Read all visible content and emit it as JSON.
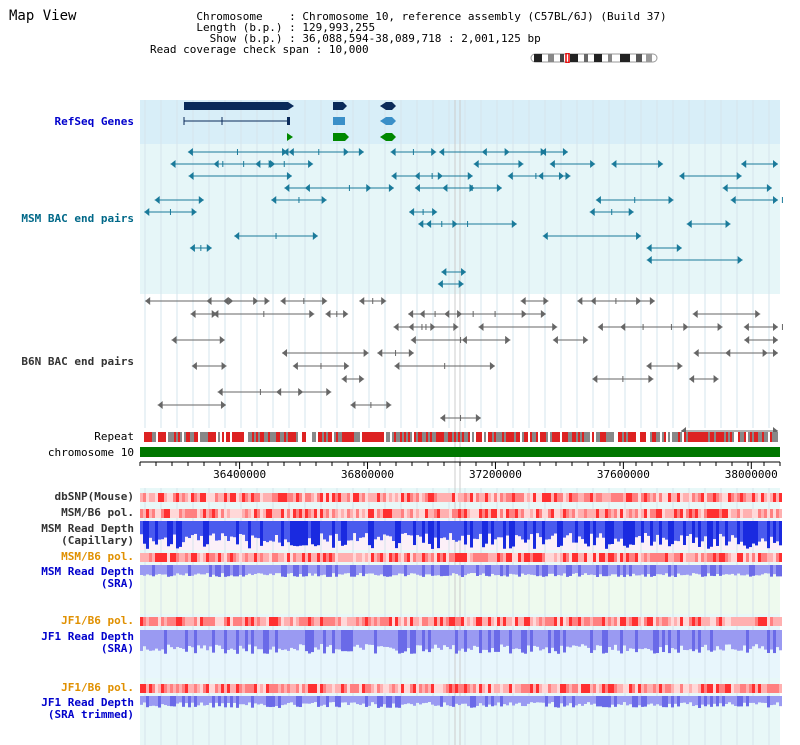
{
  "title": "Map View",
  "info": {
    "chromosome_label": "Chromosome",
    "chromosome_value": "Chromosome 10, reference assembly (C57BL/6J) (Build 37)",
    "length_label": "Length (b.p.)",
    "length_value": "129,993,255",
    "show_label": "Show (b.p.)",
    "show_value": "36,088,594-38,089,718 : 2,001,125 bp",
    "coverage_label": "Read coverage check span",
    "coverage_value": "10,000"
  },
  "tracks": {
    "refseq": "RefSeq Genes",
    "msm_bac": "MSM BAC end pairs",
    "b6n_bac": "B6N BAC end pairs",
    "repeat": "Repeat",
    "chromosome": "chromosome 10",
    "dbsnp": "dbSNP(Mouse)",
    "msm_b6_pol_1": "MSM/B6 pol.",
    "msm_depth_cap_1": "MSM Read Depth",
    "msm_depth_cap_2": "(Capillary)",
    "msm_b6_pol_2": "MSM/B6 pol.",
    "msm_depth_sra_1": "MSM Read Depth",
    "msm_depth_sra_2": "(SRA)",
    "jf1_b6_pol_1": "JF1/B6 pol.",
    "jf1_depth_sra_1": "JF1 Read Depth",
    "jf1_depth_sra_2": "(SRA)",
    "jf1_b6_pol_2": "JF1/B6 pol.",
    "jf1_depth_trim_1": "JF1 Read Depth",
    "jf1_depth_trim_2": "(SRA trimmed)"
  },
  "axis": {
    "ticks": [
      "36400000",
      "36800000",
      "37200000",
      "37600000",
      "38000000"
    ],
    "tick_values": [
      36400000,
      36800000,
      37200000,
      37600000,
      38000000
    ],
    "range": [
      36088594,
      38089718
    ]
  },
  "colors": {
    "refseq_dark": "#0a2a5a",
    "refseq_mid": "#3a8fc8",
    "refseq_green": "#008800",
    "msm_feature": "#1a7a9a",
    "b6n_feature": "#666666",
    "chromosome_bar": "#007700",
    "repeat_red": "#dd2222",
    "repeat_gray": "#888888",
    "depth_blue": "#2233dd",
    "depth_lavender": "#8888ee"
  }
}
